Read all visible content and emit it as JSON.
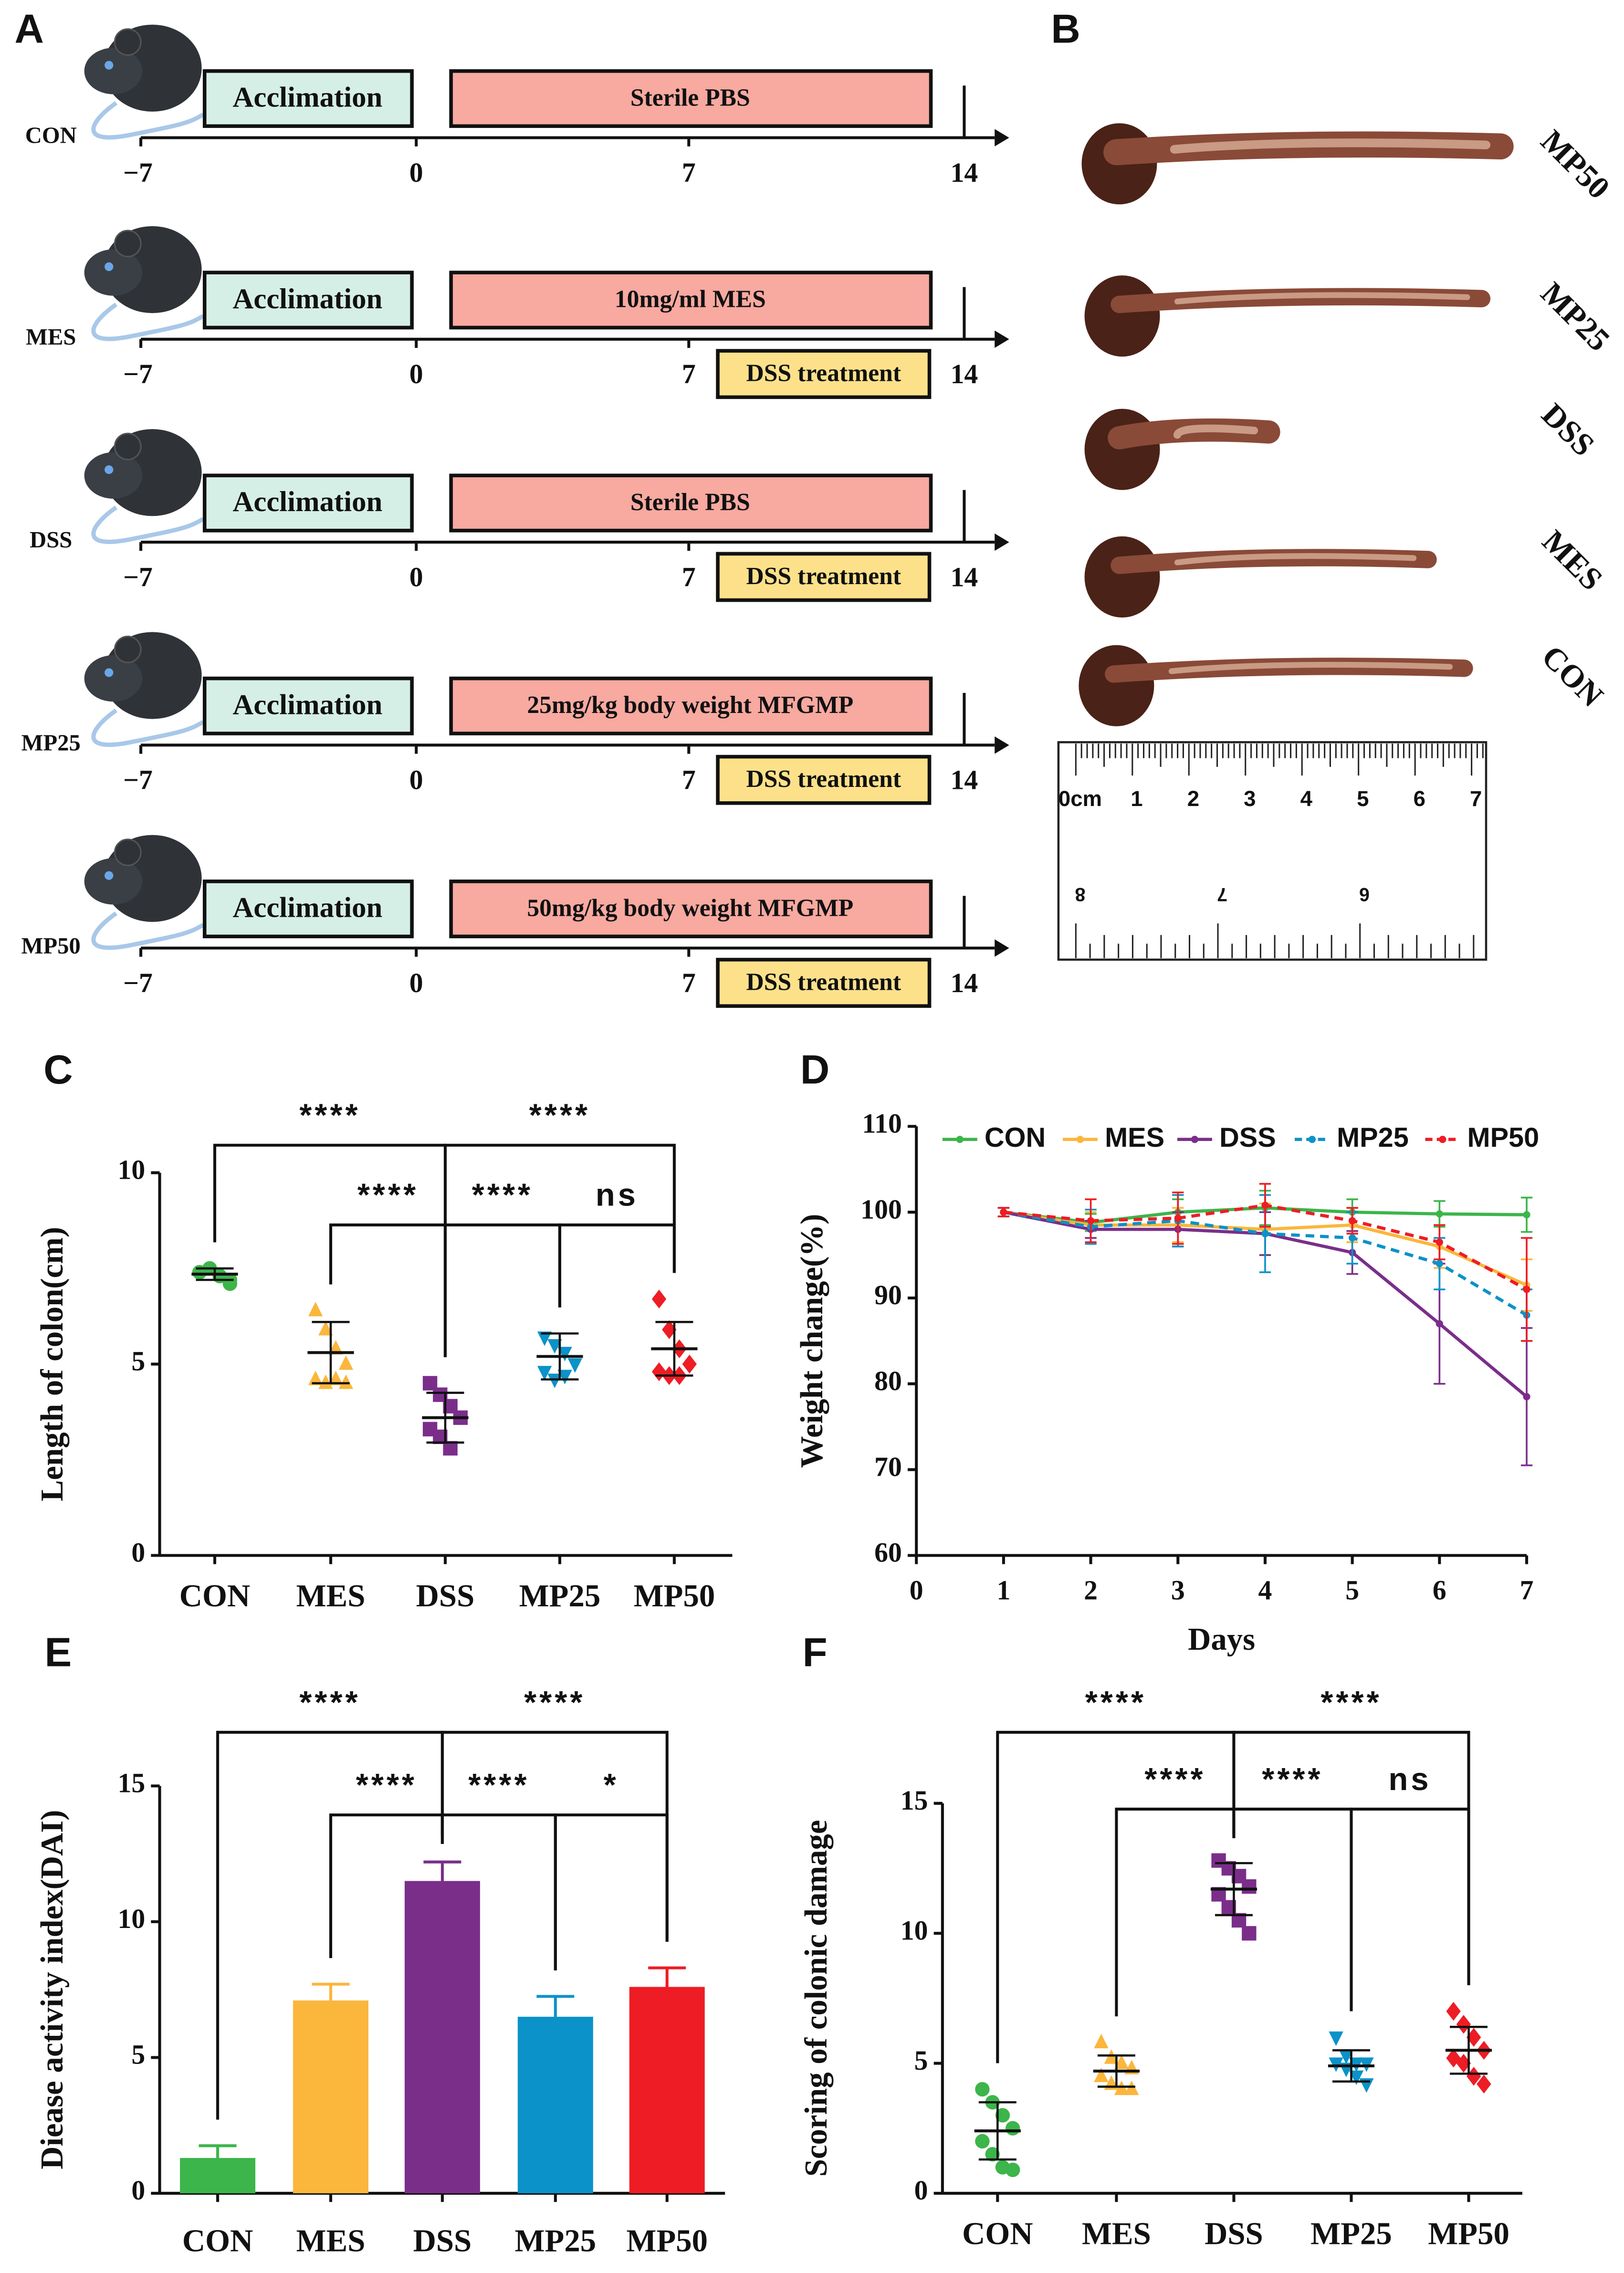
{
  "panel_labels": [
    "A",
    "B",
    "C",
    "D",
    "E",
    "F"
  ],
  "timeline": {
    "tick_labels": [
      "−7",
      "0",
      "7",
      "14"
    ],
    "rows": [
      {
        "name": "CON",
        "phase1": "Acclimation",
        "phase2": "Sterile PBS"
      },
      {
        "name": "MES",
        "phase1": "Acclimation",
        "phase2": "10mg/ml MES",
        "dss": "DSS treatment"
      },
      {
        "name": "DSS",
        "phase1": "Acclimation",
        "phase2": "Sterile PBS",
        "dss": "DSS treatment"
      },
      {
        "name": "MP25",
        "phase1": "Acclimation",
        "phase2": "25mg/kg body weight MFGMP",
        "dss": "DSS treatment"
      },
      {
        "name": "MP50",
        "phase1": "Acclimation",
        "phase2": "50mg/kg body weight MFGMP",
        "dss": "DSS treatment"
      }
    ]
  },
  "photo": {
    "labels": [
      "MP50",
      "MP25",
      "DSS",
      "MES",
      "CON"
    ],
    "ruler_top_labels": [
      "0cm",
      "1",
      "2",
      "3",
      "4",
      "5",
      "6",
      "7"
    ],
    "ruler_bottom_labels": [
      "8",
      "7",
      "6"
    ]
  },
  "chart_data": [
    {
      "type": "scatter",
      "y_label": "Length of colon(cm)",
      "categories": [
        "CON",
        "MES",
        "DSS",
        "MP25",
        "MP50"
      ],
      "colors": [
        "#3cb54a",
        "#fbb63c",
        "#7a2e8a",
        "#0b92c8",
        "#ee1c24"
      ],
      "markers": [
        "circle",
        "triangle",
        "square",
        "triangle-down",
        "diamond"
      ],
      "points": [
        [
          7.4,
          7.5,
          7.3,
          7.2,
          7.4,
          7.5,
          7.3,
          7.1
        ],
        [
          6.4,
          5.9,
          5.4,
          5.0,
          4.6,
          4.5,
          4.6,
          4.5
        ],
        [
          4.5,
          4.2,
          3.9,
          3.6,
          3.3,
          3.1,
          2.8
        ],
        [
          5.7,
          5.5,
          5.3,
          5.0,
          4.8,
          4.6,
          4.7
        ],
        [
          6.7,
          5.9,
          5.4,
          5.0,
          4.8,
          4.7,
          4.7
        ]
      ],
      "means": [
        7.35,
        5.3,
        3.6,
        5.2,
        5.4
      ],
      "sds": [
        0.15,
        0.8,
        0.65,
        0.6,
        0.7
      ],
      "ylim": [
        0,
        10
      ],
      "yticks": [
        0,
        5,
        10
      ],
      "comparisons": [
        {
          "pair": [
            0,
            2
          ],
          "label": "****"
        },
        {
          "pair": [
            2,
            4
          ],
          "label": "****"
        },
        {
          "pair": [
            1,
            2
          ],
          "label": "****"
        },
        {
          "pair": [
            2,
            3
          ],
          "label": "****"
        },
        {
          "pair": [
            3,
            4
          ],
          "label": "ns"
        }
      ]
    },
    {
      "type": "line",
      "x_label": "Days",
      "y_label": "Weight change(%)",
      "x": [
        1,
        2,
        3,
        4,
        5,
        6,
        7
      ],
      "xlim": [
        0,
        7
      ],
      "xticks": [
        0,
        1,
        2,
        3,
        4,
        5,
        6,
        7
      ],
      "ylim": [
        60,
        110
      ],
      "yticks": [
        60,
        70,
        80,
        90,
        100,
        110
      ],
      "legend": "top",
      "series": [
        {
          "name": "CON",
          "color": "#3cb54a",
          "dashed": false,
          "values": [
            100,
            98.8,
            100,
            100.5,
            100,
            99.8,
            99.7
          ],
          "errors": [
            0.5,
            1,
            1.5,
            2,
            1.5,
            1.5,
            2
          ]
        },
        {
          "name": "MES",
          "color": "#fbb63c",
          "dashed": false,
          "values": [
            100,
            98.5,
            98.5,
            98,
            98.5,
            96,
            91.5
          ],
          "errors": [
            0.5,
            1.5,
            2,
            3,
            2,
            2.5,
            3
          ]
        },
        {
          "name": "DSS",
          "color": "#7a2e8a",
          "dashed": false,
          "values": [
            100,
            98,
            98,
            97.5,
            95.3,
            87,
            78.5
          ],
          "errors": [
            0.5,
            1,
            2,
            2.5,
            2.5,
            7,
            8
          ]
        },
        {
          "name": "MP25",
          "color": "#0b92c8",
          "dashed": true,
          "values": [
            100,
            98.3,
            99,
            97.5,
            97,
            94,
            88
          ],
          "errors": [
            0.5,
            2,
            3,
            4.5,
            3,
            3,
            3
          ]
        },
        {
          "name": "MP50",
          "color": "#ee1c24",
          "dashed": true,
          "values": [
            100,
            99,
            99.3,
            100.8,
            99,
            96.5,
            91
          ],
          "errors": [
            0.5,
            2.5,
            3,
            2.5,
            1.5,
            2,
            6
          ]
        }
      ]
    },
    {
      "type": "bar",
      "y_label": "Diease activity index(DAI)",
      "categories": [
        "CON",
        "MES",
        "DSS",
        "MP25",
        "MP50"
      ],
      "colors": [
        "#3cb54a",
        "#fbb63c",
        "#7a2e8a",
        "#0b92c8",
        "#ee1c24"
      ],
      "values": [
        1.3,
        7.1,
        11.5,
        6.5,
        7.6
      ],
      "errors": [
        0.45,
        0.6,
        0.7,
        0.75,
        0.7
      ],
      "ylim": [
        0,
        15
      ],
      "yticks": [
        0,
        5,
        10,
        15
      ],
      "comparisons": [
        {
          "pair": [
            0,
            2
          ],
          "label": "****"
        },
        {
          "pair": [
            2,
            4
          ],
          "label": "****"
        },
        {
          "pair": [
            1,
            2
          ],
          "label": "****"
        },
        {
          "pair": [
            2,
            3
          ],
          "label": "****"
        },
        {
          "pair": [
            3,
            4
          ],
          "label": "*"
        }
      ]
    },
    {
      "type": "scatter",
      "y_label": "Scoring of colonic damage",
      "categories": [
        "CON",
        "MES",
        "DSS",
        "MP25",
        "MP50"
      ],
      "colors": [
        "#3cb54a",
        "#fbb63c",
        "#7a2e8a",
        "#0b92c8",
        "#ee1c24"
      ],
      "markers": [
        "circle",
        "triangle",
        "square",
        "triangle-down",
        "diamond"
      ],
      "points": [
        [
          4.0,
          3.5,
          3.0,
          2.5,
          2.0,
          1.5,
          1.0,
          0.9
        ],
        [
          5.8,
          5.2,
          5.0,
          4.8,
          4.5,
          4.2,
          4.0,
          4.0
        ],
        [
          12.8,
          12.5,
          12.2,
          11.8,
          11.5,
          11.0,
          10.5,
          10.0
        ],
        [
          6.0,
          5.3,
          5.0,
          5.0,
          5.0,
          4.8,
          4.5,
          4.2
        ],
        [
          7.0,
          6.5,
          6.0,
          5.5,
          5.2,
          5.0,
          4.5,
          4.2
        ]
      ],
      "means": [
        2.4,
        4.7,
        11.7,
        4.9,
        5.5
      ],
      "sds": [
        1.1,
        0.6,
        1.0,
        0.6,
        0.9
      ],
      "ylim": [
        0,
        15
      ],
      "yticks": [
        0,
        5,
        10,
        15
      ],
      "comparisons": [
        {
          "pair": [
            0,
            2
          ],
          "label": "****"
        },
        {
          "pair": [
            2,
            4
          ],
          "label": "****"
        },
        {
          "pair": [
            1,
            2
          ],
          "label": "****"
        },
        {
          "pair": [
            2,
            3
          ],
          "label": "****"
        },
        {
          "pair": [
            3,
            4
          ],
          "label": "ns"
        }
      ]
    }
  ]
}
